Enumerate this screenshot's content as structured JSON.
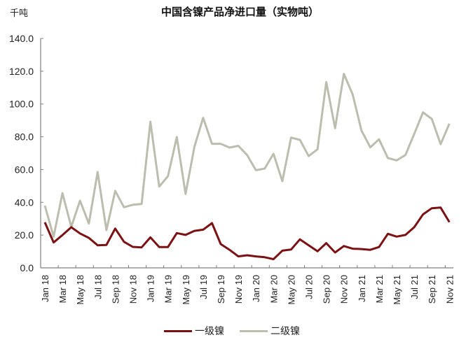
{
  "header": {
    "unit_label": "千吨",
    "title": "中国含镍产品净进口量（实物吨）"
  },
  "colors": {
    "series1": "#7b1113",
    "series2": "#bdbdaf",
    "axis": "#7f7f7f"
  },
  "legend": {
    "items": [
      {
        "label": "一级镍",
        "color": "#7b1113"
      },
      {
        "label": "二级镍",
        "color": "#bdbdaf"
      }
    ]
  },
  "chart_data": {
    "type": "line",
    "title": "中国含镍产品净进口量（实物吨）",
    "xlabel": "",
    "ylabel": "千吨",
    "ylim": [
      0,
      140
    ],
    "yticks": [
      "0.0",
      "20.0",
      "40.0",
      "60.0",
      "80.0",
      "100.0",
      "120.0",
      "140.0"
    ],
    "grid": false,
    "legend_position": "bottom",
    "x_tick_labels": [
      "Jan 18",
      "Mar 18",
      "May 18",
      "Jul 18",
      "Sep 18",
      "Nov 18",
      "Jan 19",
      "Mar 19",
      "May 19",
      "Jul 19",
      "Sep 19",
      "Nov 19",
      "Jan 20",
      "Mar 20",
      "May 20",
      "Jul 20",
      "Sep 20",
      "Nov 20",
      "Jan 21",
      "Mar 21",
      "May 21",
      "Jul 21",
      "Sep 21",
      "Nov 21"
    ],
    "x": [
      "Jan 18",
      "Feb 18",
      "Mar 18",
      "Apr 18",
      "May 18",
      "Jun 18",
      "Jul 18",
      "Aug 18",
      "Sep 18",
      "Oct 18",
      "Nov 18",
      "Dec 18",
      "Jan 19",
      "Feb 19",
      "Mar 19",
      "Apr 19",
      "May 19",
      "Jun 19",
      "Jul 19",
      "Aug 19",
      "Sep 19",
      "Oct 19",
      "Nov 19",
      "Dec 19",
      "Jan 20",
      "Feb 20",
      "Mar 20",
      "Apr 20",
      "May 20",
      "Jun 20",
      "Jul 20",
      "Aug 20",
      "Sep 20",
      "Oct 20",
      "Nov 20",
      "Dec 20",
      "Jan 21",
      "Feb 21",
      "Mar 21",
      "Apr 21",
      "May 21",
      "Jun 21",
      "Jul 21",
      "Aug 21",
      "Sep 21",
      "Oct 21",
      "Nov 21"
    ],
    "series": [
      {
        "name": "一级镍",
        "color": "#7b1113",
        "values": [
          27.8,
          15.5,
          20.0,
          24.8,
          21.0,
          18.3,
          13.8,
          14.0,
          24.0,
          15.9,
          12.8,
          12.5,
          18.6,
          12.7,
          12.7,
          21.2,
          20.1,
          22.6,
          23.3,
          27.3,
          14.5,
          11.0,
          7.0,
          7.7,
          7.0,
          6.5,
          5.3,
          10.5,
          11.2,
          17.4,
          13.8,
          10.1,
          15.1,
          9.4,
          13.3,
          11.7,
          11.5,
          11.0,
          12.7,
          20.8,
          19.1,
          20.1,
          24.8,
          32.6,
          36.4,
          36.8,
          27.9
        ]
      },
      {
        "name": "二级镍",
        "color": "#bdbdaf",
        "values": [
          38.0,
          19.0,
          45.6,
          25.0,
          41.0,
          27.0,
          58.5,
          23.0,
          47.0,
          37.0,
          38.5,
          39.0,
          89.2,
          49.6,
          56.0,
          79.8,
          45.1,
          73.8,
          91.6,
          75.7,
          75.7,
          73.4,
          74.5,
          68.8,
          59.6,
          60.6,
          69.6,
          52.9,
          79.5,
          78.1,
          68.2,
          72.4,
          113.4,
          85.2,
          118.4,
          105.8,
          83.8,
          73.6,
          78.5,
          67.0,
          65.6,
          68.9,
          81.7,
          94.9,
          90.9,
          75.5,
          88.0
        ]
      }
    ]
  }
}
